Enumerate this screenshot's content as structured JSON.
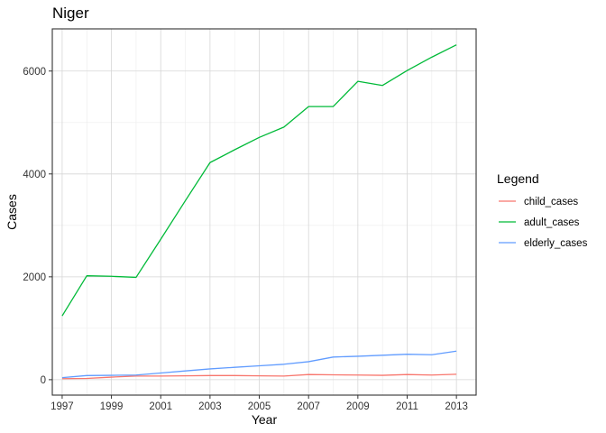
{
  "chart_data": {
    "type": "line",
    "title": "Niger",
    "xlabel": "Year",
    "ylabel": "Cases",
    "x": [
      1997,
      1998,
      1999,
      2000,
      2001,
      2002,
      2003,
      2004,
      2005,
      2006,
      2007,
      2008,
      2009,
      2010,
      2011,
      2012,
      2013
    ],
    "x_ticks": [
      "1997",
      "1999",
      "2001",
      "2003",
      "2005",
      "2007",
      "2009",
      "2011",
      "2013"
    ],
    "y_ticks": [
      "0",
      "2000",
      "4000",
      "6000"
    ],
    "xlim": [
      1996.6,
      2013.8
    ],
    "ylim": [
      -300,
      6820
    ],
    "grid": true,
    "legend": {
      "title": "Legend",
      "position": "right"
    },
    "series": [
      {
        "name": "child_cases",
        "color": "#F8766D",
        "values": [
          20,
          25,
          50,
          70,
          70,
          75,
          80,
          80,
          75,
          70,
          100,
          95,
          90,
          85,
          100,
          90,
          105
        ]
      },
      {
        "name": "adult_cases",
        "color": "#00BA38",
        "values": [
          1240,
          2020,
          2010,
          1990,
          2730,
          3480,
          4220,
          4470,
          4710,
          4910,
          5310,
          5310,
          5800,
          5720,
          6010,
          6270,
          6510
        ]
      },
      {
        "name": "elderly_cases",
        "color": "#619CFF",
        "values": [
          40,
          80,
          85,
          90,
          130,
          170,
          210,
          240,
          270,
          300,
          350,
          440,
          455,
          475,
          495,
          485,
          555
        ]
      }
    ]
  }
}
